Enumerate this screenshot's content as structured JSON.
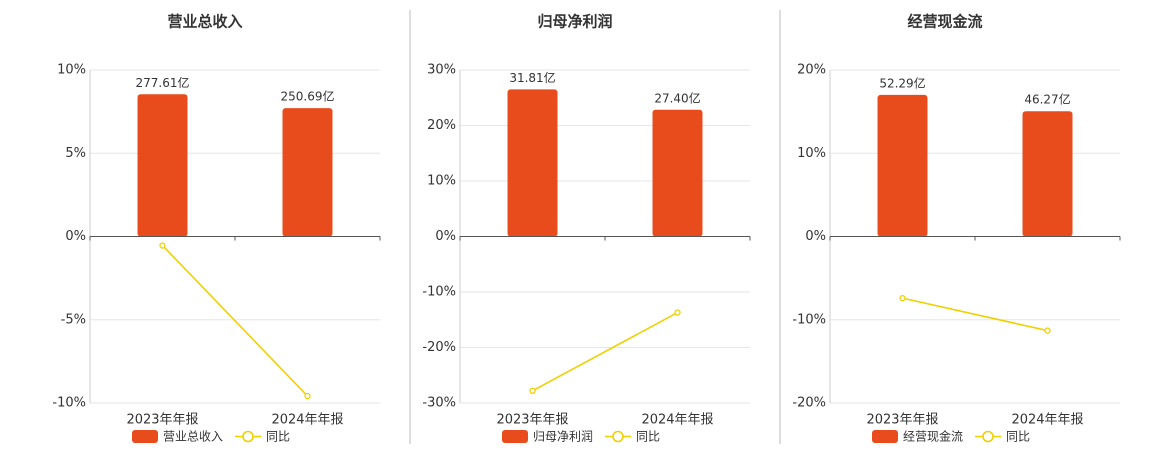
{
  "chart_data": [
    {
      "type": "combo",
      "title": "营业总收入",
      "categories": [
        "2023年年报",
        "2024年年报"
      ],
      "ylim": [
        -10,
        10
      ],
      "yticks": [
        {
          "value": -10,
          "label": "-10%"
        },
        {
          "value": -5,
          "label": "-5%"
        },
        {
          "value": 0,
          "label": "0%"
        },
        {
          "value": 5,
          "label": "5%"
        },
        {
          "value": 10,
          "label": "10%"
        }
      ],
      "y2lim": [
        -325,
        325
      ],
      "grid": true,
      "series": [
        {
          "name": "营业总收入",
          "type": "bar",
          "axis": "y2",
          "color": "#e84c1c",
          "values": [
            277.61,
            250.69
          ],
          "value_labels": [
            "277.61亿",
            "250.69亿"
          ]
        },
        {
          "name": "同比",
          "type": "line",
          "color": "#f0d000",
          "values": [
            -0.54,
            -9.58
          ]
        }
      ]
    },
    {
      "type": "combo",
      "title": "归母净利润",
      "categories": [
        "2023年年报",
        "2024年年报"
      ],
      "ylim": [
        -30,
        30
      ],
      "yticks": [
        {
          "value": -30,
          "label": "-30%"
        },
        {
          "value": -20,
          "label": "-20%"
        },
        {
          "value": -10,
          "label": "-10%"
        },
        {
          "value": 0,
          "label": "0%"
        },
        {
          "value": 10,
          "label": "10%"
        },
        {
          "value": 20,
          "label": "20%"
        },
        {
          "value": 30,
          "label": "30%"
        }
      ],
      "y2lim": [
        -36,
        36
      ],
      "grid": true,
      "series": [
        {
          "name": "归母净利润",
          "type": "bar",
          "axis": "y2",
          "color": "#e84c1c",
          "values": [
            31.81,
            27.4
          ],
          "value_labels": [
            "31.81亿",
            "27.40亿"
          ]
        },
        {
          "name": "同比",
          "type": "line",
          "color": "#f0d000",
          "values": [
            -27.8,
            -13.7
          ]
        }
      ]
    },
    {
      "type": "combo",
      "title": "经营现金流",
      "categories": [
        "2023年年报",
        "2024年年报"
      ],
      "ylim": [
        -20,
        20
      ],
      "yticks": [
        {
          "value": -20,
          "label": "-20%"
        },
        {
          "value": -10,
          "label": "-10%"
        },
        {
          "value": 0,
          "label": "0%"
        },
        {
          "value": 10,
          "label": "10%"
        },
        {
          "value": 20,
          "label": "20%"
        }
      ],
      "y2lim": [
        -61.5,
        61.5
      ],
      "grid": true,
      "series": [
        {
          "name": "经营现金流",
          "type": "bar",
          "axis": "y2",
          "color": "#e84c1c",
          "values": [
            52.29,
            46.27
          ],
          "value_labels": [
            "52.29亿",
            "46.27亿"
          ]
        },
        {
          "name": "同比",
          "type": "line",
          "color": "#f0d000",
          "values": [
            -7.4,
            -11.3
          ]
        }
      ]
    }
  ]
}
